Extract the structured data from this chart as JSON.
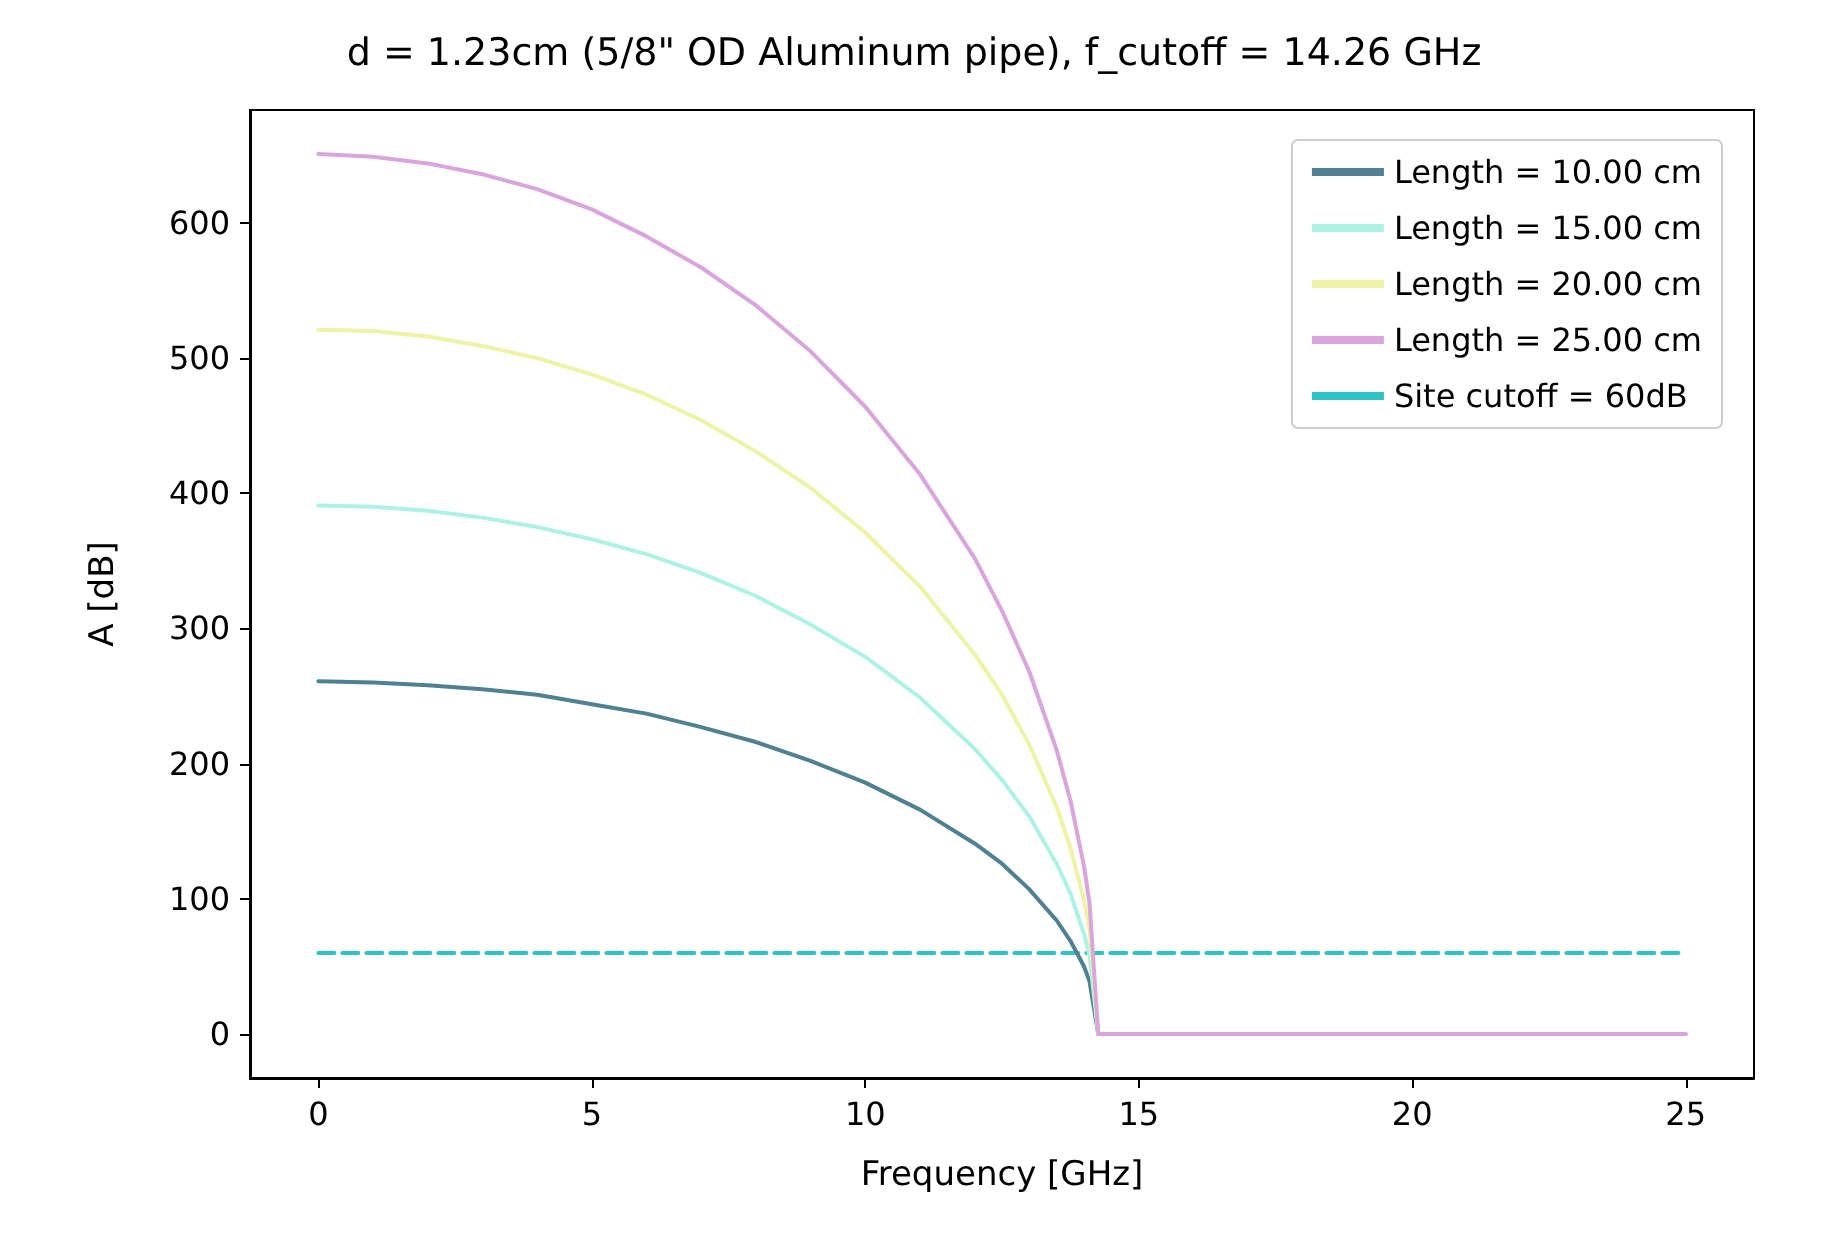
{
  "chart_data": {
    "type": "line",
    "title": "d = 1.23cm (5/8\" OD Aluminum pipe), f_cutoff = 14.26 GHz",
    "xlabel": "Frequency [GHz]",
    "ylabel": "A [dB]",
    "x": [
      0,
      1,
      2,
      3,
      4,
      5,
      6,
      7,
      8,
      9,
      10,
      11,
      12,
      12.5,
      13,
      13.5,
      13.75,
      14,
      14.1,
      14.26,
      14.3,
      25
    ],
    "series": [
      {
        "name": "Length = 10.00 cm",
        "color": "#4f8193",
        "values": [
          261,
          260,
          258,
          255,
          251,
          244,
          237,
          227,
          216,
          202,
          186,
          166,
          141,
          126,
          107,
          84,
          69,
          50,
          39,
          0,
          0,
          0
        ]
      },
      {
        "name": "Length = 15.00 cm",
        "color": "#aef2e6",
        "values": [
          391,
          390,
          387,
          382,
          375,
          366,
          355,
          341,
          324,
          303,
          279,
          249,
          211,
          188,
          161,
          126,
          104,
          74,
          58,
          0,
          0,
          0
        ]
      },
      {
        "name": "Length = 20.00 cm",
        "color": "#eef3a6",
        "values": [
          521,
          520,
          516,
          509,
          500,
          488,
          473,
          454,
          431,
          404,
          371,
          331,
          281,
          251,
          214,
          168,
          138,
          99,
          78,
          0,
          0,
          0
        ]
      },
      {
        "name": "Length = 25.00 cm",
        "color": "#d9a5dc",
        "values": [
          651,
          649,
          644,
          636,
          625,
          610,
          590,
          567,
          539,
          505,
          464,
          414,
          352,
          313,
          268,
          210,
          173,
          124,
          97,
          0,
          0,
          0
        ]
      },
      {
        "name": "Site cutoff = 60dB",
        "color": "#2ec4c4",
        "line_style": "dashed",
        "x": [
          0,
          25
        ],
        "values": [
          60,
          60
        ]
      }
    ],
    "xlim": [
      -1.25,
      26.25
    ],
    "xticks": [
      0,
      5,
      10,
      15,
      20,
      25
    ],
    "ylim": [
      -32.5,
      683.5
    ],
    "yticks": [
      0,
      100,
      200,
      300,
      400,
      500,
      600
    ],
    "grid": false,
    "legend": "top right",
    "marker": "none"
  }
}
